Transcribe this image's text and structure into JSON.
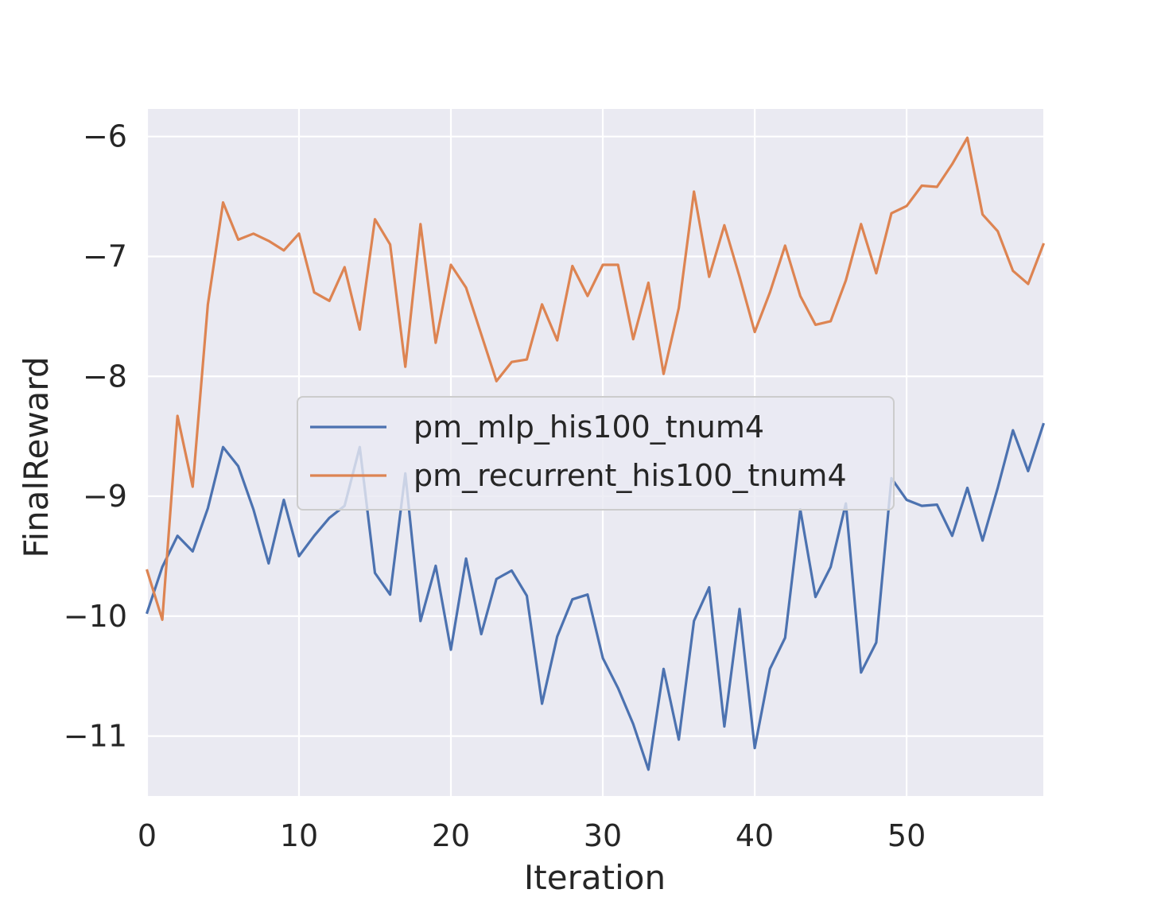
{
  "chart_data": {
    "type": "line",
    "title": "",
    "xlabel": "Iteration",
    "ylabel": "FinalReward",
    "xlim": [
      0,
      59
    ],
    "ylim": [
      -11.5,
      -5.77
    ],
    "xticks": [
      0,
      10,
      20,
      30,
      40,
      50
    ],
    "xtick_labels": [
      "0",
      "10",
      "20",
      "30",
      "40",
      "50"
    ],
    "yticks": [
      -6,
      -7,
      -8,
      -9,
      -10,
      -11
    ],
    "ytick_labels": [
      "−6",
      "−7",
      "−8",
      "−9",
      "−10",
      "−11"
    ],
    "grid": true,
    "legend_position": "center",
    "x": [
      0,
      1,
      2,
      3,
      4,
      5,
      6,
      7,
      8,
      9,
      10,
      11,
      12,
      13,
      14,
      15,
      16,
      17,
      18,
      19,
      20,
      21,
      22,
      23,
      24,
      25,
      26,
      27,
      28,
      29,
      30,
      31,
      32,
      33,
      34,
      35,
      36,
      37,
      38,
      39,
      40,
      41,
      42,
      43,
      44,
      45,
      46,
      47,
      48,
      49,
      50,
      51,
      52,
      53,
      54,
      55,
      56,
      57,
      58,
      59
    ],
    "series": [
      {
        "name": "pm_mlp_his100_tnum4",
        "color": "#4c72b0",
        "values": [
          -9.97,
          -9.59,
          -9.33,
          -9.46,
          -9.1,
          -8.59,
          -8.75,
          -9.11,
          -9.56,
          -9.03,
          -9.5,
          -9.33,
          -9.18,
          -9.08,
          -8.59,
          -9.64,
          -9.82,
          -8.81,
          -10.04,
          -9.58,
          -10.28,
          -9.52,
          -10.15,
          -9.69,
          -9.62,
          -9.83,
          -10.73,
          -10.17,
          -9.86,
          -9.82,
          -10.35,
          -10.6,
          -10.9,
          -11.28,
          -10.44,
          -11.03,
          -10.04,
          -9.76,
          -10.92,
          -9.94,
          -11.1,
          -10.44,
          -10.18,
          -9.11,
          -9.84,
          -9.59,
          -9.06,
          -10.47,
          -10.22,
          -8.85,
          -9.03,
          -9.08,
          -9.07,
          -9.33,
          -8.93,
          -9.37,
          -8.93,
          -8.45,
          -8.79,
          -8.4
        ]
      },
      {
        "name": "pm_recurrent_his100_tnum4",
        "color": "#dd8452",
        "values": [
          -9.62,
          -10.03,
          -8.33,
          -8.92,
          -7.4,
          -6.55,
          -6.86,
          -6.81,
          -6.87,
          -6.95,
          -6.81,
          -7.3,
          -7.37,
          -7.09,
          -7.61,
          -6.69,
          -6.9,
          -7.92,
          -6.73,
          -7.72,
          -7.07,
          -7.26,
          -7.65,
          -8.04,
          -7.88,
          -7.86,
          -7.4,
          -7.7,
          -7.08,
          -7.33,
          -7.07,
          -7.07,
          -7.69,
          -7.22,
          -7.98,
          -7.43,
          -6.46,
          -7.17,
          -6.74,
          -7.17,
          -7.63,
          -7.3,
          -6.91,
          -7.33,
          -7.57,
          -7.54,
          -7.2,
          -6.73,
          -7.14,
          -6.64,
          -6.58,
          -6.41,
          -6.42,
          -6.23,
          -6.01,
          -6.65,
          -6.79,
          -7.12,
          -7.23,
          -6.9
        ]
      }
    ]
  }
}
